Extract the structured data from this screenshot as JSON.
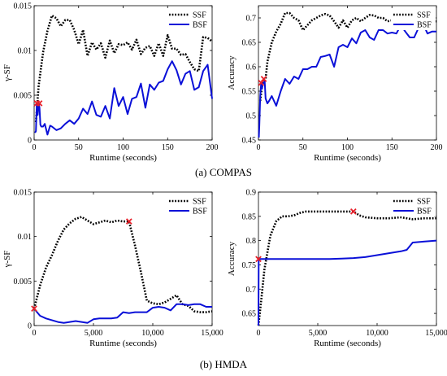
{
  "captions": [
    "(a) COMPAS",
    "(b) HMDA"
  ],
  "colors": {
    "ssf": "#000000",
    "bsf": "#0a10d8",
    "marker": "#e8202a"
  },
  "chart_data": [
    {
      "type": "line",
      "ylabel": "γ-SF",
      "xlabel": "Runtime (seconds)",
      "xlim": [
        0,
        200
      ],
      "ylim": [
        0,
        0.015
      ],
      "xticks": [
        0,
        50,
        100,
        150,
        200
      ],
      "xtick_labels": [
        "0",
        "50",
        "100",
        "150",
        "200"
      ],
      "yticks": [
        0,
        0.005,
        0.01,
        0.015
      ],
      "ytick_labels": [
        "0",
        "0.005",
        "0.01",
        "0.015"
      ],
      "legend": "top-right",
      "series": [
        {
          "name": "SSF",
          "style": "dotted",
          "color": "#000000",
          "x": [
            2,
            5,
            10,
            15,
            20,
            25,
            30,
            35,
            40,
            45,
            50,
            55,
            60,
            65,
            70,
            75,
            80,
            85,
            90,
            95,
            100,
            105,
            110,
            115,
            120,
            125,
            130,
            135,
            140,
            145,
            150,
            155,
            160,
            165,
            170,
            175,
            180,
            185,
            190,
            195,
            200
          ],
          "y": [
            0.002,
            0.006,
            0.0098,
            0.0122,
            0.0139,
            0.0136,
            0.0127,
            0.0134,
            0.0134,
            0.0123,
            0.0107,
            0.0123,
            0.0094,
            0.0109,
            0.0101,
            0.0108,
            0.0092,
            0.0111,
            0.0097,
            0.0107,
            0.0106,
            0.0109,
            0.0101,
            0.0112,
            0.0096,
            0.0103,
            0.0105,
            0.0094,
            0.0108,
            0.0094,
            0.0117,
            0.0102,
            0.0102,
            0.0095,
            0.0096,
            0.0087,
            0.0079,
            0.0077,
            0.0115,
            0.0114,
            0.011
          ]
        },
        {
          "name": "BSF",
          "style": "solid",
          "color": "#0a10d8",
          "x": [
            1,
            2,
            3,
            4,
            5,
            6,
            7,
            8,
            10,
            12,
            15,
            18,
            20,
            25,
            30,
            35,
            40,
            45,
            50,
            55,
            60,
            65,
            70,
            75,
            80,
            85,
            90,
            95,
            100,
            105,
            110,
            115,
            120,
            125,
            130,
            135,
            140,
            145,
            150,
            155,
            160,
            165,
            170,
            175,
            180,
            185,
            190,
            195,
            200
          ],
          "y": [
            0.0008,
            0.001,
            0.0041,
            0.0028,
            0.0042,
            0.0036,
            0.0017,
            0.0015,
            0.0015,
            0.0018,
            0.0006,
            0.0016,
            0.0015,
            0.0011,
            0.0013,
            0.0018,
            0.0022,
            0.0018,
            0.0024,
            0.0035,
            0.0029,
            0.0043,
            0.0028,
            0.0026,
            0.0038,
            0.0024,
            0.0058,
            0.0038,
            0.0048,
            0.0029,
            0.0046,
            0.0048,
            0.0063,
            0.0036,
            0.0062,
            0.0056,
            0.0064,
            0.0066,
            0.0079,
            0.0088,
            0.0078,
            0.0062,
            0.0074,
            0.0077,
            0.0056,
            0.0059,
            0.0077,
            0.0084,
            0.0046
          ]
        }
      ],
      "markers": [
        {
          "x": 3,
          "y": 0.0041
        },
        {
          "x": 6,
          "y": 0.0041
        }
      ]
    },
    {
      "type": "line",
      "ylabel": "Accuracy",
      "xlabel": "Runtime (seconds)",
      "xlim": [
        0,
        200
      ],
      "ylim": [
        0.45,
        0.725
      ],
      "xticks": [
        0,
        50,
        100,
        150,
        200
      ],
      "xtick_labels": [
        "0",
        "50",
        "100",
        "150",
        "200"
      ],
      "yticks": [
        0.45,
        0.5,
        0.55,
        0.6,
        0.65,
        0.7
      ],
      "ytick_labels": [
        "0.45",
        "0.5",
        "0.55",
        "0.6",
        "0.65",
        "0.7"
      ],
      "legend": "top-right",
      "series": [
        {
          "name": "SSF",
          "style": "dotted",
          "color": "#000000",
          "x": [
            2,
            4,
            6,
            8,
            10,
            15,
            20,
            25,
            30,
            35,
            40,
            45,
            50,
            55,
            60,
            65,
            70,
            75,
            80,
            85,
            90,
            95,
            100,
            105,
            110,
            115,
            120,
            125,
            130,
            135,
            140,
            145,
            150,
            155,
            160,
            165,
            170,
            175,
            180,
            185,
            190,
            195,
            200
          ],
          "y": [
            0.53,
            0.56,
            0.57,
            0.575,
            0.61,
            0.65,
            0.672,
            0.688,
            0.71,
            0.71,
            0.7,
            0.695,
            0.675,
            0.685,
            0.695,
            0.7,
            0.705,
            0.708,
            0.705,
            0.693,
            0.68,
            0.695,
            0.68,
            0.695,
            0.7,
            0.693,
            0.7,
            0.706,
            0.705,
            0.7,
            0.7,
            0.693,
            0.695,
            0.69,
            0.7,
            0.705,
            0.705,
            0.695,
            0.695,
            0.69,
            0.685,
            0.693,
            0.693
          ]
        },
        {
          "name": "BSF",
          "style": "solid",
          "color": "#0a10d8",
          "x": [
            0.5,
            1,
            2,
            3,
            4,
            5,
            7,
            8,
            10,
            12,
            15,
            20,
            25,
            30,
            35,
            40,
            45,
            50,
            55,
            60,
            65,
            70,
            75,
            80,
            85,
            90,
            95,
            100,
            105,
            110,
            115,
            120,
            125,
            130,
            135,
            140,
            145,
            150,
            155,
            160,
            165,
            170,
            175,
            180,
            185,
            190,
            195,
            200
          ],
          "y": [
            0.455,
            0.48,
            0.54,
            0.565,
            0.555,
            0.565,
            0.57,
            0.535,
            0.525,
            0.53,
            0.54,
            0.52,
            0.55,
            0.575,
            0.565,
            0.58,
            0.575,
            0.595,
            0.595,
            0.6,
            0.6,
            0.62,
            0.622,
            0.625,
            0.6,
            0.64,
            0.645,
            0.64,
            0.658,
            0.648,
            0.67,
            0.675,
            0.66,
            0.655,
            0.675,
            0.675,
            0.668,
            0.67,
            0.668,
            0.685,
            0.672,
            0.66,
            0.66,
            0.68,
            0.688,
            0.668,
            0.672,
            0.672
          ]
        }
      ],
      "markers": [
        {
          "x": 3,
          "y": 0.567
        },
        {
          "x": 6,
          "y": 0.575
        }
      ]
    },
    {
      "type": "line",
      "ylabel": "γ-SF",
      "xlabel": "Runtime (seconds)",
      "xlim": [
        0,
        15000
      ],
      "ylim": [
        0,
        0.015
      ],
      "xticks": [
        0,
        5000,
        10000,
        15000
      ],
      "xtick_labels": [
        "0",
        "5,000",
        "10,000",
        "15,000"
      ],
      "yticks": [
        0,
        0.005,
        0.01,
        0.015
      ],
      "ytick_labels": [
        "0",
        "0.005",
        "0.01",
        "0.015"
      ],
      "legend": "top-right",
      "series": [
        {
          "name": "SSF",
          "style": "dotted",
          "color": "#000000",
          "x": [
            0,
            500,
            1000,
            1500,
            2000,
            2500,
            3000,
            3500,
            4000,
            4500,
            5000,
            5500,
            6000,
            6500,
            7000,
            7500,
            8000,
            8500,
            9000,
            9500,
            10000,
            10500,
            11000,
            11500,
            12000,
            12500,
            13000,
            13500,
            14000,
            14500,
            15000
          ],
          "y": [
            0.0019,
            0.0045,
            0.0065,
            0.0079,
            0.0095,
            0.0108,
            0.0115,
            0.012,
            0.0122,
            0.0118,
            0.0114,
            0.0116,
            0.0118,
            0.0116,
            0.0118,
            0.0117,
            0.0117,
            0.009,
            0.006,
            0.0028,
            0.0025,
            0.0024,
            0.0026,
            0.003,
            0.0034,
            0.0024,
            0.0022,
            0.0016,
            0.0015,
            0.0015,
            0.0016
          ]
        },
        {
          "name": "BSF",
          "style": "solid",
          "color": "#0a10d8",
          "x": [
            0,
            250,
            500,
            1000,
            1500,
            2000,
            2500,
            3000,
            3500,
            4000,
            4500,
            5000,
            5500,
            6000,
            6500,
            7000,
            7500,
            8000,
            8500,
            9000,
            9500,
            10000,
            10500,
            11000,
            11500,
            12000,
            12500,
            13000,
            13500,
            14000,
            14500,
            15000
          ],
          "y": [
            0.0019,
            0.0015,
            0.0011,
            0.0008,
            0.0006,
            0.0004,
            0.0003,
            0.0004,
            0.0005,
            0.0004,
            0.0003,
            0.0007,
            0.0008,
            0.0008,
            0.0008,
            0.0009,
            0.0015,
            0.0014,
            0.0015,
            0.0015,
            0.0015,
            0.002,
            0.0021,
            0.002,
            0.0017,
            0.0024,
            0.0024,
            0.0023,
            0.0024,
            0.0024,
            0.0021,
            0.0021
          ]
        }
      ],
      "markers": [
        {
          "x": 0,
          "y": 0.0019
        },
        {
          "x": 8000,
          "y": 0.0117
        }
      ]
    },
    {
      "type": "line",
      "ylabel": "Accuracy",
      "xlabel": "Runtime (seconds)",
      "xlim": [
        0,
        15000
      ],
      "ylim": [
        0.625,
        0.9
      ],
      "xticks": [
        0,
        5000,
        10000,
        15000
      ],
      "xtick_labels": [
        "0",
        "5,000",
        "10,000",
        "15,000"
      ],
      "yticks": [
        0.65,
        0.7,
        0.75,
        0.8,
        0.85,
        0.9
      ],
      "ytick_labels": [
        "0.65",
        "0.7",
        "0.75",
        "0.8",
        "0.85",
        "0.9"
      ],
      "legend": "top-right",
      "series": [
        {
          "name": "SSF",
          "style": "dotted",
          "color": "#000000",
          "x": [
            0,
            250,
            500,
            1000,
            1500,
            2000,
            2500,
            3000,
            3500,
            4000,
            5000,
            6000,
            7000,
            8000,
            8500,
            9000,
            10000,
            11000,
            12000,
            12500,
            13000,
            14000,
            15000
          ],
          "y": [
            0.625,
            0.68,
            0.74,
            0.81,
            0.84,
            0.85,
            0.85,
            0.852,
            0.857,
            0.86,
            0.86,
            0.86,
            0.86,
            0.86,
            0.852,
            0.848,
            0.846,
            0.846,
            0.848,
            0.846,
            0.844,
            0.846,
            0.846
          ]
        },
        {
          "name": "BSF",
          "style": "solid",
          "color": "#0a10d8",
          "x": [
            0,
            20,
            100,
            1000,
            2000,
            3000,
            4000,
            5000,
            6000,
            7000,
            8000,
            9000,
            10000,
            11000,
            12000,
            12500,
            13000,
            14000,
            15000
          ],
          "y": [
            0.625,
            0.762,
            0.762,
            0.762,
            0.762,
            0.762,
            0.762,
            0.762,
            0.762,
            0.763,
            0.764,
            0.766,
            0.77,
            0.774,
            0.778,
            0.781,
            0.796,
            0.798,
            0.8
          ]
        }
      ],
      "markers": [
        {
          "x": 0,
          "y": 0.762
        },
        {
          "x": 8000,
          "y": 0.86
        }
      ]
    }
  ]
}
